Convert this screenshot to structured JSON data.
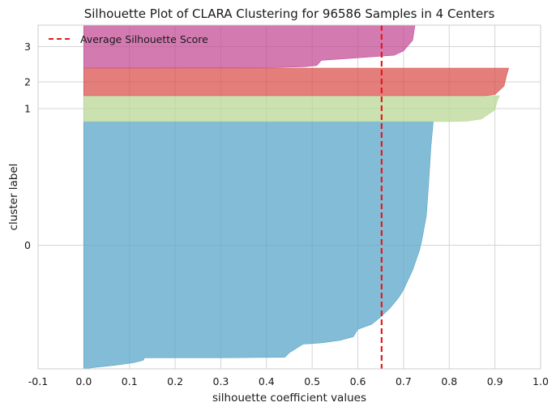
{
  "chart_data": {
    "type": "area",
    "title": "Silhouette Plot of CLARA Clustering for 96586 Samples in 4 Centers",
    "xlabel": "silhouette coefficient values",
    "ylabel": "cluster label",
    "xlim": [
      -0.1,
      1.0
    ],
    "xticks": [
      "-0.1",
      "0.0",
      "0.1",
      "0.2",
      "0.3",
      "0.4",
      "0.5",
      "0.6",
      "0.7",
      "0.8",
      "0.9",
      "1.0"
    ],
    "grid": true,
    "legend_position": "top-left",
    "average_silhouette_score": 0.652,
    "average_line_color": "#e31a1c",
    "clusters": [
      {
        "label": "0",
        "color": "#5aa5c8",
        "profile": [
          [
            0.0,
            1.0
          ],
          [
            0.02,
            0.995
          ],
          [
            0.07,
            0.985
          ],
          [
            0.11,
            0.975
          ],
          [
            0.13,
            0.965
          ],
          [
            0.133,
            0.955
          ],
          [
            0.2,
            0.955
          ],
          [
            0.3,
            0.955
          ],
          [
            0.44,
            0.953
          ],
          [
            0.45,
            0.935
          ],
          [
            0.48,
            0.9
          ],
          [
            0.52,
            0.895
          ],
          [
            0.56,
            0.885
          ],
          [
            0.59,
            0.87
          ],
          [
            0.6,
            0.84
          ],
          [
            0.63,
            0.82
          ],
          [
            0.65,
            0.79
          ],
          [
            0.67,
            0.755
          ],
          [
            0.69,
            0.71
          ],
          [
            0.7,
            0.68
          ],
          [
            0.72,
            0.6
          ],
          [
            0.735,
            0.52
          ],
          [
            0.74,
            0.48
          ],
          [
            0.75,
            0.38
          ],
          [
            0.755,
            0.25
          ],
          [
            0.76,
            0.1
          ],
          [
            0.765,
            0.0
          ]
        ]
      },
      {
        "label": "1",
        "color": "#b9d896",
        "profile": [
          [
            0.0,
            1.0
          ],
          [
            0.8,
            1.0
          ],
          [
            0.84,
            0.98
          ],
          [
            0.87,
            0.9
          ],
          [
            0.9,
            0.55
          ],
          [
            0.905,
            0.2
          ],
          [
            0.91,
            0.0
          ]
        ]
      },
      {
        "label": "2",
        "color": "#d9534f",
        "profile": [
          [
            0.0,
            1.0
          ],
          [
            0.88,
            1.0
          ],
          [
            0.9,
            0.96
          ],
          [
            0.92,
            0.65
          ],
          [
            0.925,
            0.3
          ],
          [
            0.93,
            0.0
          ]
        ]
      },
      {
        "label": "3",
        "color": "#c44e97",
        "profile": [
          [
            0.0,
            1.0
          ],
          [
            0.4,
            0.99
          ],
          [
            0.48,
            0.97
          ],
          [
            0.51,
            0.94
          ],
          [
            0.52,
            0.82
          ],
          [
            0.6,
            0.76
          ],
          [
            0.68,
            0.7
          ],
          [
            0.7,
            0.6
          ],
          [
            0.72,
            0.35
          ],
          [
            0.725,
            0.0
          ]
        ]
      }
    ],
    "legend": [
      {
        "label": "Average Silhouette Score",
        "color": "#e31a1c",
        "style": "dashed"
      }
    ]
  }
}
